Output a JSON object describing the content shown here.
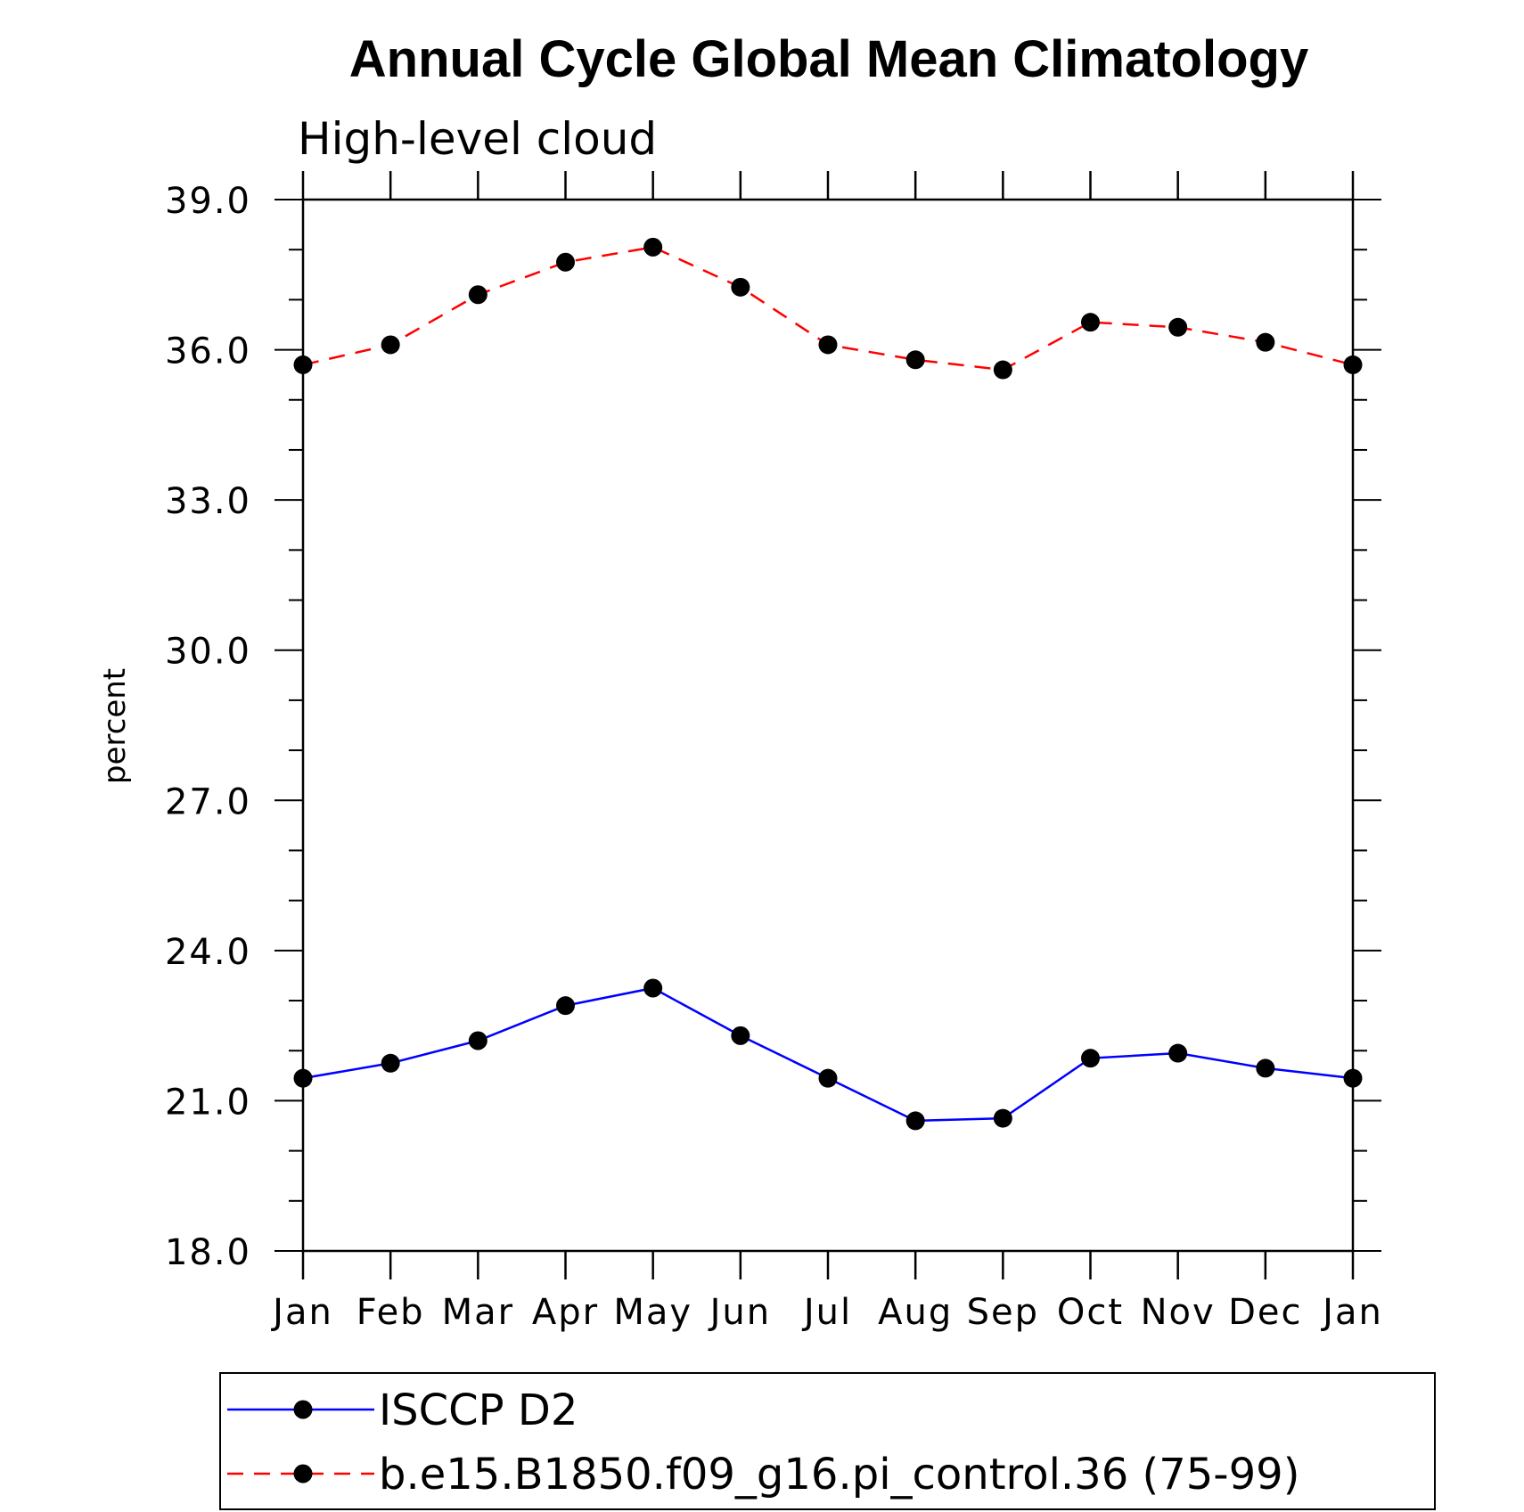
{
  "chart_data": {
    "type": "line",
    "title": "Annual Cycle Global Mean Climatology",
    "subtitle": "High-level cloud",
    "xlabel": "",
    "ylabel": "percent",
    "categories": [
      "Jan",
      "Feb",
      "Mar",
      "Apr",
      "May",
      "Jun",
      "Jul",
      "Aug",
      "Sep",
      "Oct",
      "Nov",
      "Dec",
      "Jan"
    ],
    "ylim": [
      18.0,
      39.0
    ],
    "yticks": [
      "18.0",
      "21.0",
      "24.0",
      "27.0",
      "30.0",
      "33.0",
      "36.0",
      "39.0"
    ],
    "grid": false,
    "legend_position": "bottom",
    "series": [
      {
        "name": "ISCCP D2",
        "color": "#0000ff",
        "dash": "solid",
        "values": [
          21.45,
          21.75,
          22.2,
          22.9,
          23.25,
          22.3,
          21.45,
          20.6,
          20.65,
          21.85,
          21.95,
          21.65,
          21.45
        ]
      },
      {
        "name": "b.e15.B1850.f09_g16.pi_control.36 (75-99)",
        "color": "#ff0000",
        "dash": "dashed",
        "values": [
          35.7,
          36.1,
          37.1,
          37.75,
          38.05,
          37.25,
          36.1,
          35.8,
          35.6,
          36.55,
          36.45,
          36.15,
          35.7
        ]
      }
    ]
  }
}
